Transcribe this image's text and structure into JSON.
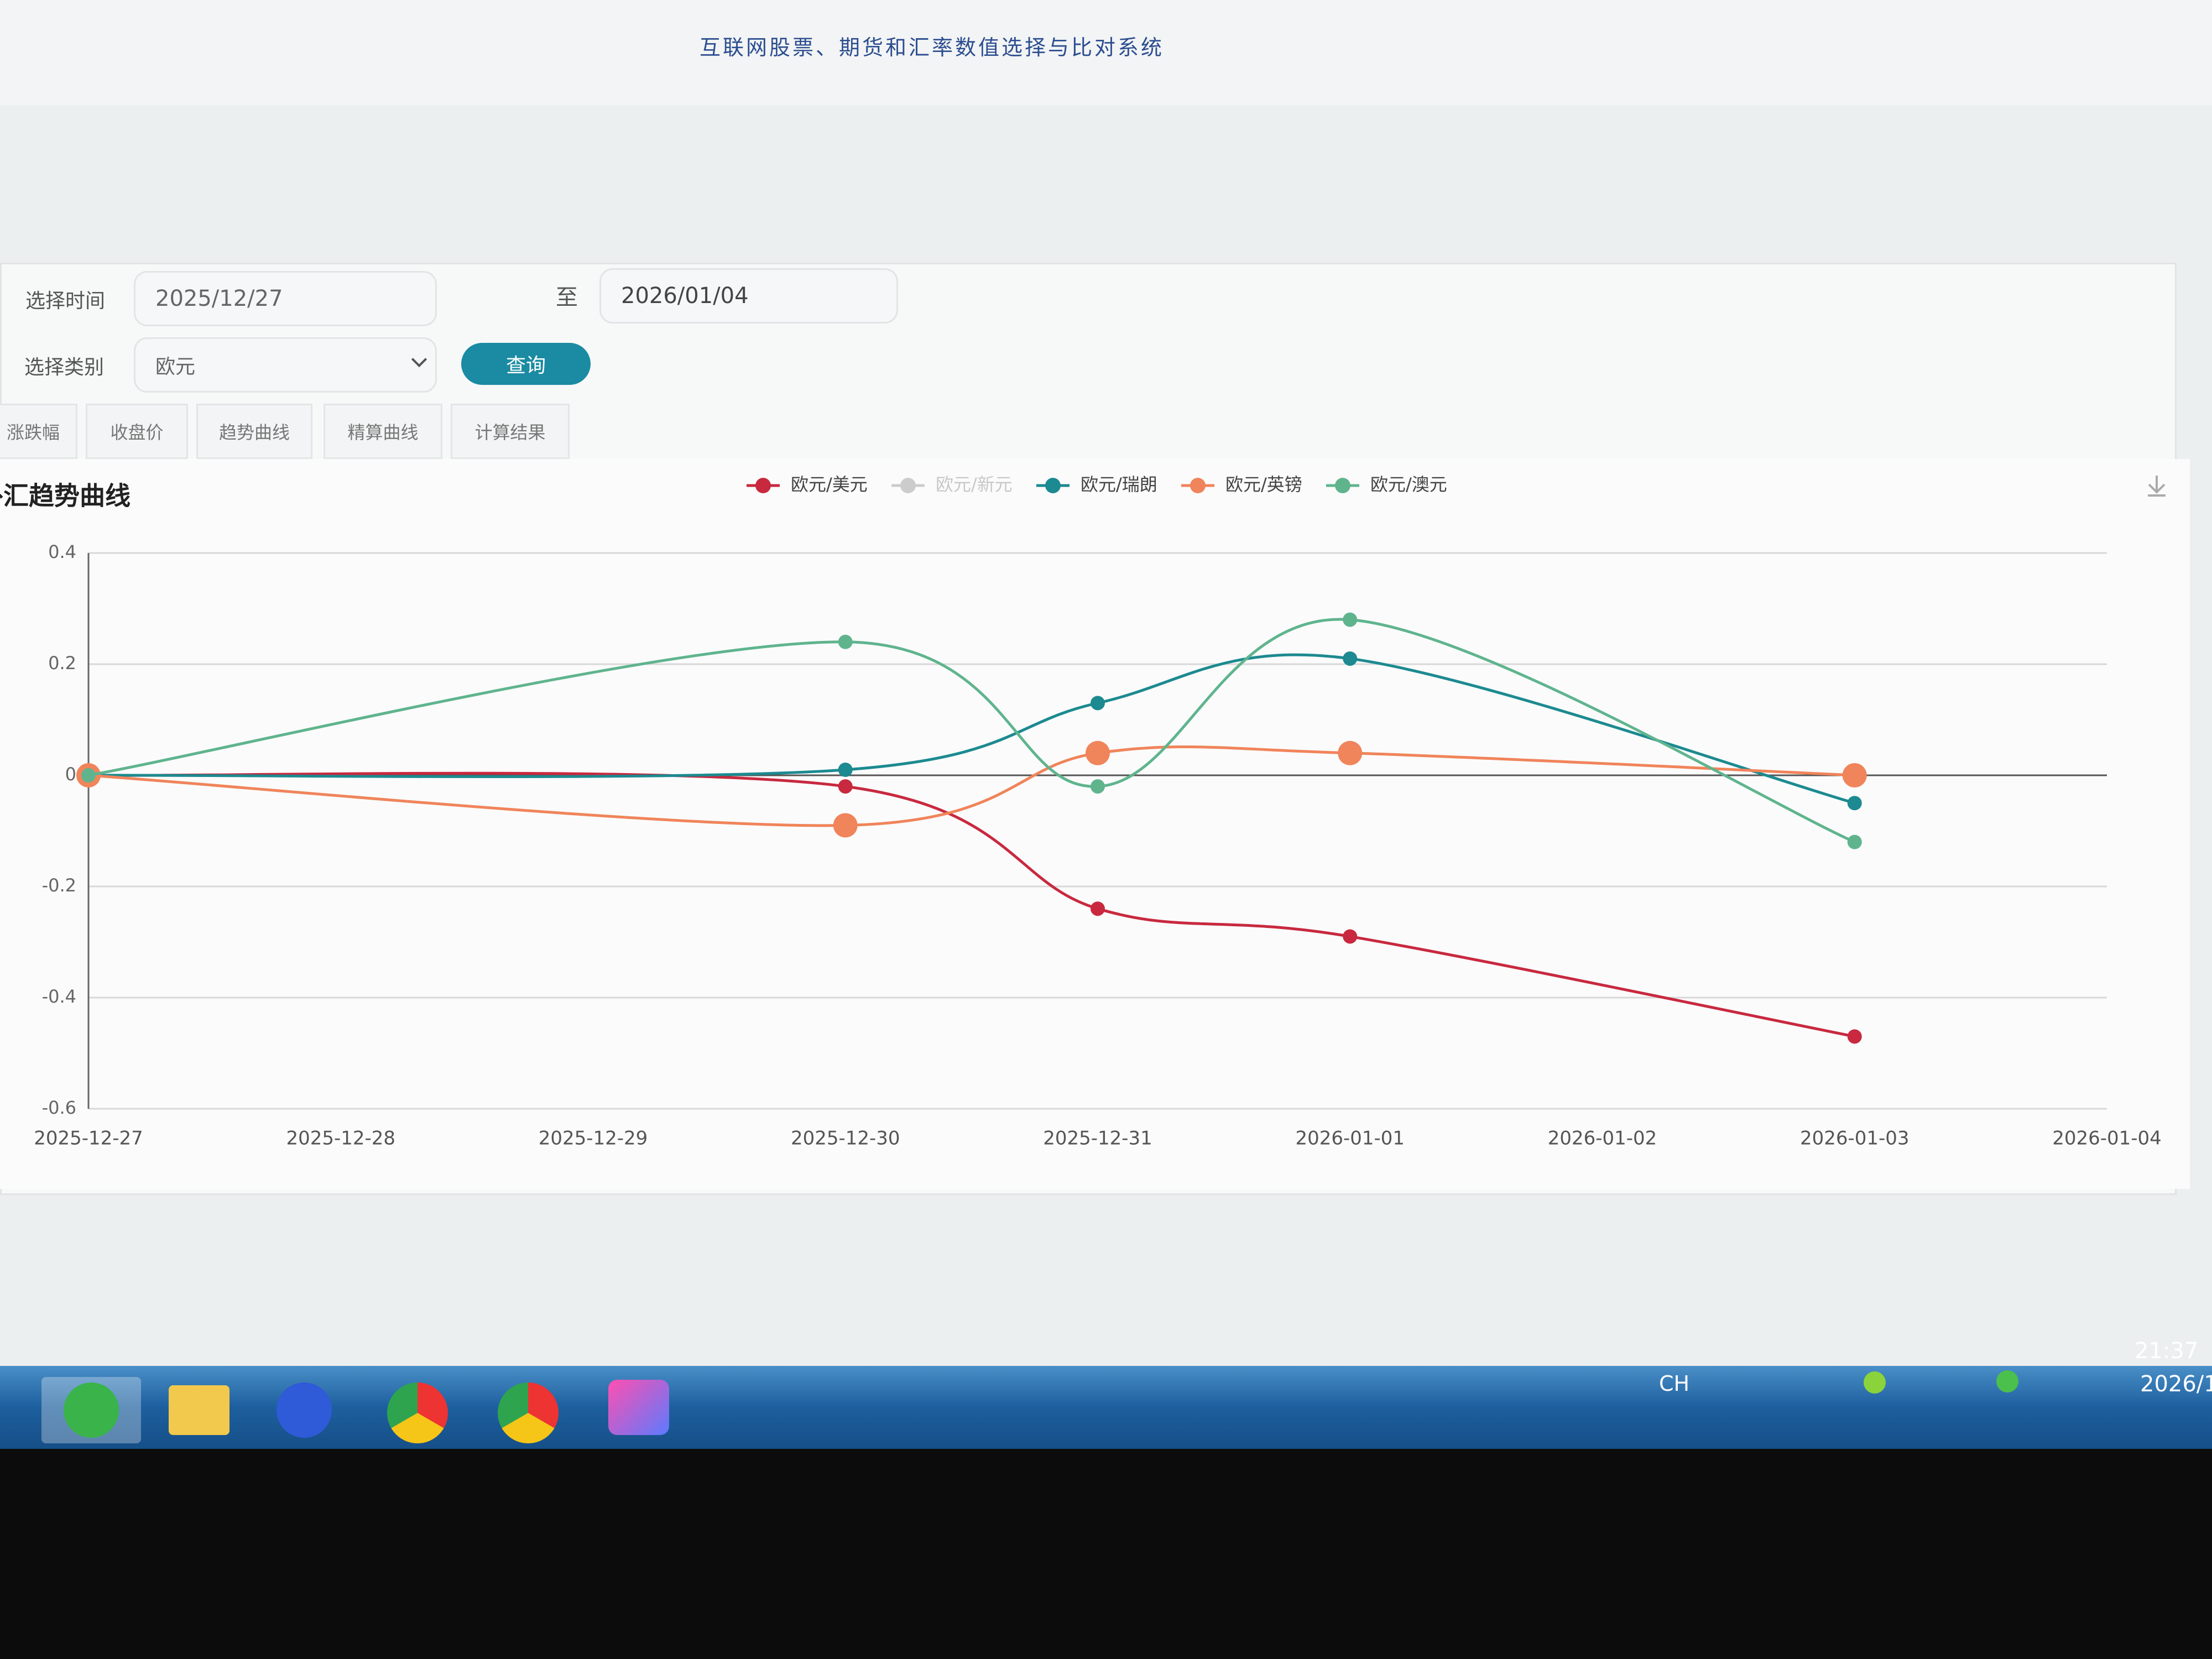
{
  "header": {
    "title": "互联网股票、期货和汇率数值选择与比对系统"
  },
  "form": {
    "time_label": "选择时间",
    "start_date": "2025/12/27",
    "separator": "至",
    "end_date": "2026/01/04",
    "category_label": "选择类别",
    "category": "欧元",
    "query_button": "查询"
  },
  "tabs": [
    "涨跌幅",
    "收盘价",
    "趋势曲线",
    "精算曲线",
    "计算结果"
  ],
  "chart_data": {
    "type": "line",
    "title": "外汇趋势曲线",
    "smooth": true,
    "grid": true,
    "x": [
      "2025-12-27",
      "2025-12-30",
      "2025-12-31",
      "2026-01-01",
      "2026-01-03"
    ],
    "xlim": [
      "2025-12-27",
      "2026-01-04"
    ],
    "xticks": [
      "2025-12-27",
      "2025-12-28",
      "2025-12-29",
      "2025-12-30",
      "2025-12-31",
      "2026-01-01",
      "2026-01-02",
      "2026-01-03",
      "2026-01-04"
    ],
    "ylim": [
      -0.6,
      0.4
    ],
    "yticks": [
      -0.6,
      -0.4,
      -0.2,
      0,
      0.2,
      0.4
    ],
    "series": [
      {
        "name": "欧元/美元",
        "color": "#c8293f",
        "values": [
          0,
          -0.02,
          -0.24,
          -0.29,
          -0.47
        ]
      },
      {
        "name": "欧元/新元",
        "color": "#b0b0b0",
        "hidden": true
      },
      {
        "name": "欧元/瑞朗",
        "color": "#1c8a90",
        "values": [
          0,
          0.01,
          0.13,
          0.21,
          -0.05
        ]
      },
      {
        "name": "欧元/英镑",
        "color": "#f0845a",
        "values": [
          0,
          -0.09,
          0.04,
          0.04,
          0
        ]
      },
      {
        "name": "欧元/澳元",
        "color": "#5fb48e",
        "values": [
          0,
          0.24,
          -0.02,
          0.28,
          -0.12
        ]
      }
    ]
  },
  "taskbar": {
    "input_language": "CH",
    "time": "21:37",
    "date": "2026/1"
  }
}
